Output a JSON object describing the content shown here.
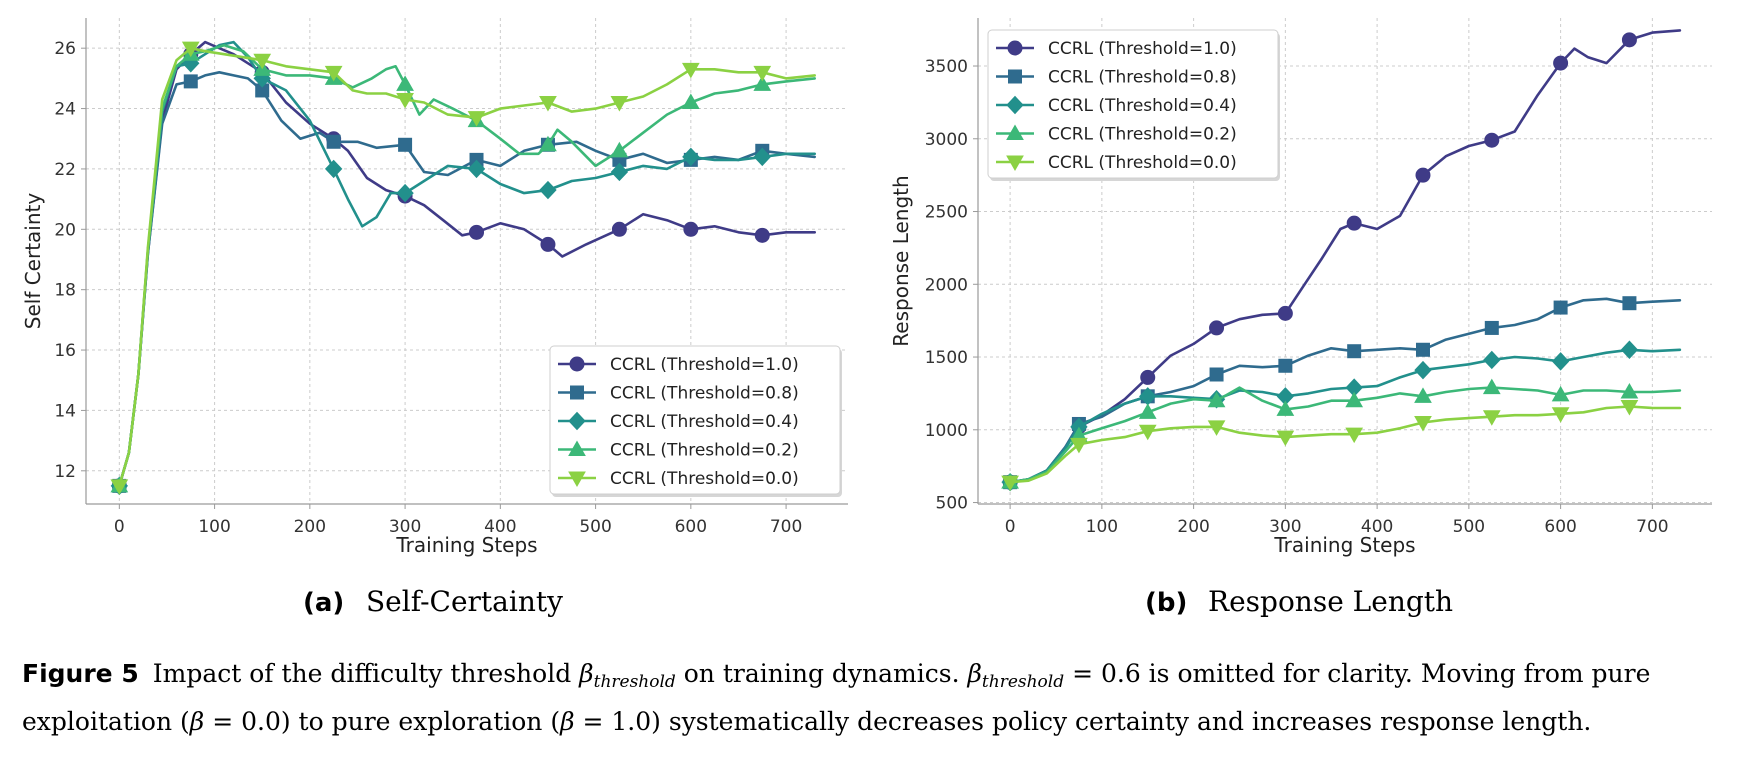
{
  "chart_data": [
    {
      "type": "line",
      "panel_letter": "(a)",
      "panel_title": "Self-Certainty",
      "xlabel": "Training Steps",
      "ylabel": "Self Certainty",
      "xlim": [
        -35,
        765
      ],
      "ylim": [
        10.9,
        27.0
      ],
      "xticks": [
        0,
        100,
        200,
        300,
        400,
        500,
        600,
        700
      ],
      "yticks": [
        12,
        14,
        16,
        18,
        20,
        22,
        24,
        26
      ],
      "grid": true,
      "legend_position": "lower-right",
      "marker_every": [
        0,
        75,
        150,
        225,
        300,
        375,
        450,
        525,
        600,
        675
      ],
      "series": [
        {
          "name": "CCRL (Threshold=1.0)",
          "color": "#3f3b87",
          "marker": "circle",
          "x": [
            0,
            10,
            20,
            30,
            45,
            60,
            75,
            90,
            105,
            120,
            150,
            175,
            200,
            225,
            240,
            260,
            280,
            300,
            320,
            340,
            360,
            375,
            400,
            425,
            450,
            465,
            490,
            525,
            550,
            575,
            600,
            625,
            650,
            675,
            700,
            730
          ],
          "y": [
            11.5,
            12.6,
            15.2,
            19.2,
            23.6,
            25.3,
            25.8,
            26.2,
            26.0,
            25.8,
            25.2,
            24.2,
            23.5,
            23.0,
            22.6,
            21.7,
            21.3,
            21.1,
            20.8,
            20.3,
            19.8,
            19.9,
            20.2,
            20.0,
            19.5,
            19.1,
            19.5,
            20.0,
            20.5,
            20.3,
            20.0,
            20.1,
            19.9,
            19.8,
            19.9,
            19.9
          ]
        },
        {
          "name": "CCRL (Threshold=0.8)",
          "color": "#2f6b8e",
          "marker": "square",
          "x": [
            0,
            10,
            20,
            30,
            45,
            60,
            75,
            90,
            105,
            120,
            135,
            150,
            170,
            190,
            210,
            225,
            250,
            270,
            300,
            320,
            345,
            375,
            400,
            425,
            450,
            480,
            500,
            525,
            550,
            575,
            600,
            625,
            650,
            675,
            700,
            730
          ],
          "y": [
            11.5,
            12.6,
            15.2,
            19.2,
            23.5,
            24.8,
            24.9,
            25.1,
            25.2,
            25.1,
            25.0,
            24.6,
            23.6,
            23.0,
            23.2,
            22.9,
            22.9,
            22.7,
            22.8,
            21.9,
            21.8,
            22.3,
            22.1,
            22.6,
            22.8,
            22.9,
            22.6,
            22.3,
            22.5,
            22.2,
            22.3,
            22.4,
            22.3,
            22.6,
            22.5,
            22.4
          ]
        },
        {
          "name": "CCRL (Threshold=0.4)",
          "color": "#22908c",
          "marker": "diamond",
          "x": [
            0,
            10,
            20,
            30,
            45,
            60,
            75,
            90,
            105,
            120,
            135,
            150,
            175,
            200,
            225,
            240,
            255,
            270,
            285,
            300,
            320,
            345,
            375,
            400,
            425,
            450,
            475,
            500,
            525,
            550,
            575,
            600,
            625,
            650,
            675,
            700,
            730
          ],
          "y": [
            11.5,
            12.6,
            15.2,
            19.3,
            23.9,
            25.4,
            25.5,
            25.8,
            26.1,
            26.2,
            25.7,
            25.0,
            24.6,
            23.6,
            22.0,
            21.0,
            20.1,
            20.4,
            21.2,
            21.2,
            21.6,
            22.1,
            22.0,
            21.5,
            21.2,
            21.3,
            21.6,
            21.7,
            21.9,
            22.1,
            22.0,
            22.4,
            22.3,
            22.3,
            22.4,
            22.5,
            22.5
          ]
        },
        {
          "name": "CCRL (Threshold=0.2)",
          "color": "#3cb878",
          "marker": "triangle-up",
          "x": [
            0,
            10,
            20,
            30,
            45,
            60,
            75,
            90,
            110,
            130,
            150,
            175,
            200,
            225,
            245,
            265,
            280,
            290,
            300,
            315,
            330,
            350,
            375,
            400,
            420,
            440,
            450,
            460,
            475,
            500,
            525,
            550,
            575,
            600,
            625,
            650,
            675,
            700,
            730
          ],
          "y": [
            11.5,
            12.6,
            15.2,
            19.3,
            24.0,
            25.4,
            25.8,
            25.9,
            26.1,
            25.9,
            25.3,
            25.1,
            25.1,
            25.0,
            24.7,
            25.0,
            25.3,
            25.4,
            24.8,
            23.8,
            24.3,
            24.0,
            23.6,
            23.0,
            22.5,
            22.5,
            22.8,
            23.3,
            22.9,
            22.1,
            22.6,
            23.2,
            23.8,
            24.2,
            24.5,
            24.6,
            24.8,
            24.9,
            25.0
          ]
        },
        {
          "name": "CCRL (Threshold=0.0)",
          "color": "#8bd143",
          "marker": "triangle-down",
          "x": [
            0,
            10,
            20,
            30,
            45,
            60,
            75,
            90,
            110,
            130,
            150,
            175,
            200,
            225,
            245,
            260,
            280,
            300,
            320,
            345,
            375,
            400,
            425,
            450,
            475,
            500,
            525,
            550,
            575,
            600,
            625,
            650,
            675,
            700,
            730
          ],
          "y": [
            11.5,
            12.6,
            15.2,
            19.4,
            24.3,
            25.6,
            26.0,
            25.9,
            25.8,
            25.7,
            25.6,
            25.4,
            25.3,
            25.2,
            24.6,
            24.5,
            24.5,
            24.3,
            24.2,
            23.8,
            23.7,
            24.0,
            24.1,
            24.2,
            23.9,
            24.0,
            24.2,
            24.4,
            24.8,
            25.3,
            25.3,
            25.2,
            25.2,
            25.0,
            25.1
          ]
        }
      ]
    },
    {
      "type": "line",
      "panel_letter": "(b)",
      "panel_title": "Response Length",
      "xlabel": "Training Steps",
      "ylabel": "Response Length",
      "xlim": [
        -35,
        765
      ],
      "ylim": [
        490,
        3830
      ],
      "xticks": [
        0,
        100,
        200,
        300,
        400,
        500,
        600,
        700
      ],
      "yticks": [
        500,
        1000,
        1500,
        2000,
        2500,
        3000,
        3500
      ],
      "grid": true,
      "legend_position": "upper-left",
      "marker_every": [
        0,
        75,
        150,
        225,
        300,
        375,
        450,
        525,
        600,
        675
      ],
      "series": [
        {
          "name": "CCRL (Threshold=1.0)",
          "color": "#3f3b87",
          "marker": "circle",
          "x": [
            0,
            20,
            40,
            60,
            75,
            100,
            125,
            150,
            175,
            200,
            225,
            250,
            275,
            300,
            320,
            340,
            360,
            375,
            400,
            425,
            450,
            475,
            500,
            525,
            550,
            575,
            600,
            615,
            630,
            650,
            675,
            700,
            730
          ],
          "y": [
            640,
            660,
            720,
            880,
            1020,
            1100,
            1210,
            1360,
            1510,
            1590,
            1700,
            1760,
            1790,
            1800,
            1990,
            2180,
            2380,
            2420,
            2380,
            2470,
            2750,
            2880,
            2950,
            2990,
            3050,
            3300,
            3520,
            3620,
            3560,
            3520,
            3680,
            3730,
            3745
          ]
        },
        {
          "name": "CCRL (Threshold=0.8)",
          "color": "#2f6b8e",
          "marker": "square",
          "x": [
            0,
            20,
            40,
            60,
            75,
            100,
            125,
            150,
            175,
            200,
            225,
            250,
            275,
            300,
            325,
            350,
            375,
            400,
            425,
            450,
            475,
            500,
            525,
            550,
            575,
            600,
            625,
            650,
            675,
            700,
            730
          ],
          "y": [
            640,
            660,
            720,
            880,
            1040,
            1090,
            1180,
            1230,
            1260,
            1300,
            1380,
            1440,
            1430,
            1440,
            1510,
            1560,
            1540,
            1550,
            1560,
            1550,
            1620,
            1660,
            1700,
            1720,
            1760,
            1840,
            1890,
            1900,
            1870,
            1880,
            1890
          ]
        },
        {
          "name": "CCRL (Threshold=0.4)",
          "color": "#22908c",
          "marker": "diamond",
          "x": [
            0,
            20,
            40,
            60,
            75,
            100,
            125,
            150,
            175,
            200,
            225,
            250,
            275,
            300,
            325,
            350,
            375,
            400,
            425,
            450,
            475,
            500,
            525,
            550,
            575,
            600,
            625,
            650,
            675,
            700,
            730
          ],
          "y": [
            640,
            660,
            720,
            870,
            1020,
            1110,
            1180,
            1230,
            1230,
            1220,
            1210,
            1270,
            1260,
            1230,
            1250,
            1280,
            1290,
            1300,
            1360,
            1410,
            1430,
            1450,
            1480,
            1500,
            1490,
            1470,
            1500,
            1530,
            1550,
            1540,
            1550
          ]
        },
        {
          "name": "CCRL (Threshold=0.2)",
          "color": "#3cb878",
          "marker": "triangle-up",
          "x": [
            0,
            20,
            40,
            60,
            75,
            100,
            125,
            150,
            175,
            200,
            225,
            250,
            275,
            300,
            325,
            350,
            375,
            400,
            425,
            450,
            475,
            500,
            525,
            550,
            575,
            600,
            625,
            650,
            675,
            700,
            730
          ],
          "y": [
            640,
            660,
            710,
            850,
            960,
            1010,
            1060,
            1120,
            1180,
            1210,
            1200,
            1290,
            1200,
            1140,
            1160,
            1200,
            1200,
            1220,
            1250,
            1230,
            1260,
            1280,
            1290,
            1280,
            1270,
            1240,
            1270,
            1270,
            1260,
            1260,
            1270
          ]
        },
        {
          "name": "CCRL (Threshold=0.0)",
          "color": "#8bd143",
          "marker": "triangle-down",
          "x": [
            0,
            20,
            40,
            60,
            75,
            100,
            125,
            150,
            175,
            200,
            225,
            250,
            275,
            300,
            325,
            350,
            375,
            400,
            425,
            450,
            475,
            500,
            525,
            550,
            575,
            600,
            625,
            650,
            675,
            700,
            730
          ],
          "y": [
            640,
            650,
            700,
            820,
            900,
            930,
            950,
            990,
            1010,
            1020,
            1020,
            980,
            960,
            950,
            960,
            970,
            970,
            980,
            1010,
            1050,
            1070,
            1080,
            1090,
            1100,
            1100,
            1110,
            1120,
            1150,
            1160,
            1150,
            1150
          ]
        }
      ]
    }
  ],
  "caption": {
    "label": "Figure 5",
    "p1": "Impact of the difficulty threshold ",
    "beta": "β",
    "sub": "threshold",
    "p2": " on training dynamics. ",
    "p3": " = 0.6 is omitted for clarity. Moving from pure exploitation (",
    "p4": " = 0.0) to pure exploration (",
    "p5": " = 1.0) systematically decreases policy certainty and increases response length."
  }
}
